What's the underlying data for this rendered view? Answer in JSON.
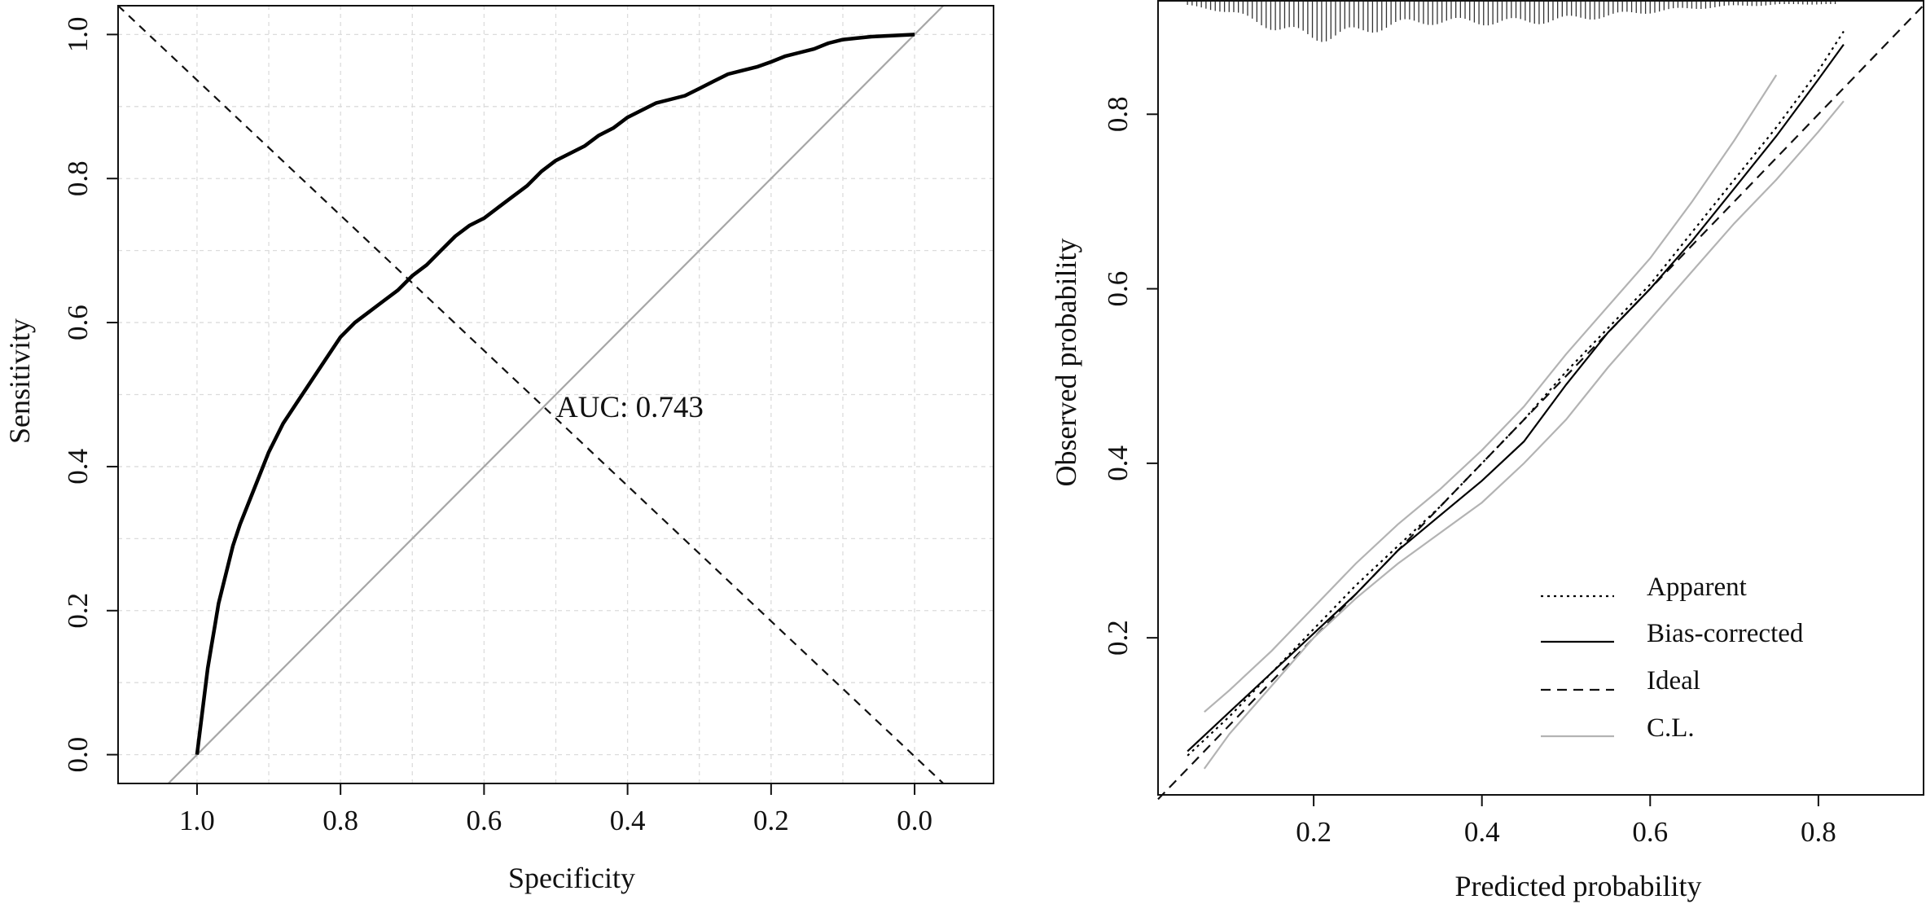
{
  "chart_data": [
    {
      "type": "line",
      "xlabel": "Specificity",
      "ylabel": "Sensitivity",
      "xlim": [
        1.11,
        -0.11
      ],
      "ylim": [
        -0.04,
        1.04
      ],
      "x_reversed": true,
      "x_ticks": [
        "1.0",
        "0.8",
        "0.6",
        "0.4",
        "0.2",
        "0.0"
      ],
      "y_ticks": [
        "0.0",
        "0.2",
        "0.4",
        "0.6",
        "0.8",
        "1.0"
      ],
      "grid": true,
      "annotation": "AUC: 0.743",
      "auc": 0.743,
      "roc_curve": {
        "specificity": [
          1.0,
          0.995,
          0.99,
          0.985,
          0.98,
          0.975,
          0.97,
          0.96,
          0.95,
          0.94,
          0.92,
          0.9,
          0.88,
          0.86,
          0.84,
          0.82,
          0.8,
          0.78,
          0.76,
          0.74,
          0.72,
          0.7,
          0.68,
          0.66,
          0.64,
          0.62,
          0.6,
          0.58,
          0.56,
          0.54,
          0.52,
          0.5,
          0.48,
          0.46,
          0.44,
          0.42,
          0.4,
          0.38,
          0.36,
          0.34,
          0.32,
          0.3,
          0.28,
          0.26,
          0.24,
          0.22,
          0.2,
          0.18,
          0.16,
          0.14,
          0.12,
          0.1,
          0.08,
          0.06,
          0.04,
          0.02,
          0.0
        ],
        "sensitivity": [
          0.0,
          0.04,
          0.08,
          0.12,
          0.15,
          0.18,
          0.21,
          0.25,
          0.29,
          0.32,
          0.37,
          0.42,
          0.46,
          0.49,
          0.52,
          0.55,
          0.58,
          0.6,
          0.615,
          0.63,
          0.645,
          0.665,
          0.68,
          0.7,
          0.72,
          0.735,
          0.745,
          0.76,
          0.775,
          0.79,
          0.81,
          0.825,
          0.835,
          0.845,
          0.86,
          0.87,
          0.885,
          0.895,
          0.905,
          0.91,
          0.915,
          0.925,
          0.935,
          0.945,
          0.95,
          0.955,
          0.962,
          0.97,
          0.975,
          0.98,
          0.988,
          0.993,
          0.995,
          0.997,
          0.998,
          0.999,
          1.0
        ]
      },
      "reference_diagonal": {
        "specificity": [
          1.04,
          -0.04
        ],
        "sensitivity": [
          -0.04,
          1.04
        ]
      },
      "dashed_line": {
        "specificity": [
          1.11,
          -0.04
        ],
        "sensitivity": [
          1.04,
          -0.04
        ]
      }
    },
    {
      "type": "line",
      "xlabel": "Predicted probability",
      "ylabel": "Observed probability",
      "xlim": [
        0.015,
        0.925
      ],
      "ylim": [
        0.02,
        0.93
      ],
      "x_ticks": [
        "0.2",
        "0.4",
        "0.6",
        "0.8"
      ],
      "y_ticks": [
        "0.2",
        "0.4",
        "0.6",
        "0.8"
      ],
      "legend_position": "bottom-right",
      "series": [
        {
          "name": "Apparent",
          "style": "dotted",
          "x": [
            0.05,
            0.1,
            0.15,
            0.2,
            0.25,
            0.3,
            0.35,
            0.4,
            0.45,
            0.5,
            0.55,
            0.6,
            0.65,
            0.7,
            0.75,
            0.8,
            0.83
          ],
          "y": [
            0.065,
            0.11,
            0.16,
            0.21,
            0.26,
            0.305,
            0.35,
            0.4,
            0.45,
            0.505,
            0.555,
            0.605,
            0.665,
            0.725,
            0.785,
            0.85,
            0.895
          ]
        },
        {
          "name": "Bias-corrected",
          "style": "solid",
          "x": [
            0.05,
            0.1,
            0.15,
            0.2,
            0.25,
            0.3,
            0.35,
            0.4,
            0.45,
            0.5,
            0.55,
            0.6,
            0.65,
            0.7,
            0.75,
            0.8,
            0.83
          ],
          "y": [
            0.07,
            0.115,
            0.16,
            0.205,
            0.25,
            0.3,
            0.34,
            0.38,
            0.425,
            0.49,
            0.55,
            0.6,
            0.655,
            0.715,
            0.775,
            0.84,
            0.88
          ]
        },
        {
          "name": "Ideal",
          "style": "dashed",
          "x": [
            0.015,
            0.925
          ],
          "y": [
            0.015,
            0.925
          ]
        },
        {
          "name": "C.L.",
          "style": "solid-gray",
          "x": [
            0.07,
            0.1,
            0.15,
            0.2,
            0.25,
            0.3,
            0.35,
            0.4,
            0.45,
            0.5,
            0.55,
            0.6,
            0.65,
            0.7,
            0.75
          ],
          "y": [
            0.115,
            0.14,
            0.185,
            0.235,
            0.285,
            0.33,
            0.37,
            0.415,
            0.465,
            0.525,
            0.58,
            0.635,
            0.7,
            0.77,
            0.845
          ],
          "lower_x": [
            0.07,
            0.1,
            0.15,
            0.2,
            0.25,
            0.3,
            0.35,
            0.4,
            0.45,
            0.5,
            0.55,
            0.6,
            0.65,
            0.7,
            0.75,
            0.8,
            0.83
          ],
          "lower_y": [
            0.05,
            0.09,
            0.145,
            0.2,
            0.245,
            0.285,
            0.32,
            0.355,
            0.4,
            0.45,
            0.51,
            0.565,
            0.62,
            0.675,
            0.725,
            0.78,
            0.815
          ]
        }
      ],
      "rug": {
        "x_min": 0.05,
        "x_max": 0.82
      }
    }
  ]
}
